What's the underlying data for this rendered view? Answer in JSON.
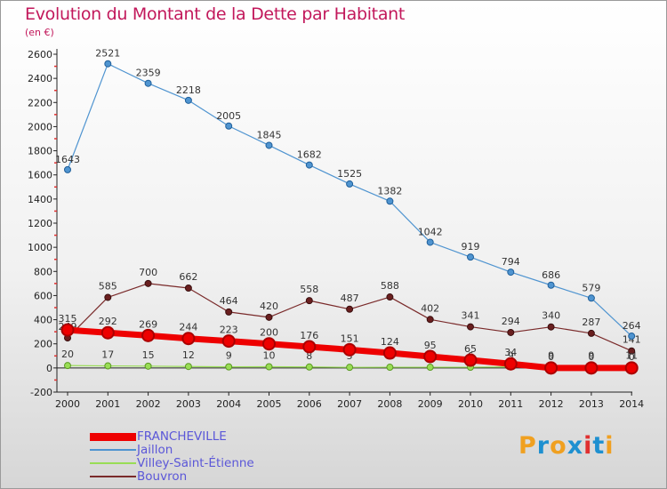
{
  "title": "Evolution du Montant de la Dette par Habitant",
  "unit": "(en €)",
  "logo": {
    "text": "Proxiti",
    "letter_colors": [
      "#f0a020",
      "#1e90d0",
      "#f0a020",
      "#1e90d0",
      "#e03030",
      "#1e90d0",
      "#f0a020"
    ]
  },
  "chart_data": {
    "type": "line",
    "title": "Evolution du Montant de la Dette par Habitant",
    "ylabel": "(en €)",
    "x": [
      "2000",
      "2001",
      "2002",
      "2003",
      "2004",
      "2005",
      "2006",
      "2007",
      "2008",
      "2009",
      "2010",
      "2011",
      "2012",
      "2013",
      "2014"
    ],
    "ylim": [
      -200,
      2600
    ],
    "yticks": [
      "-200",
      "0",
      "200",
      "400",
      "600",
      "800",
      "1000",
      "1200",
      "1400",
      "1600",
      "1800",
      "2000",
      "2200",
      "2400",
      "2600"
    ],
    "grid": false,
    "legend_position": "bottom-left",
    "series": [
      {
        "name": "FRANCHEVILLE",
        "color": "#ee0000",
        "values": [
          315,
          292,
          269,
          244,
          223,
          200,
          176,
          151,
          124,
          95,
          65,
          34,
          0,
          0,
          0
        ],
        "labels": [
          "315",
          "292",
          "269",
          "244",
          "223",
          "200",
          "176",
          "151",
          "124",
          "95",
          "65",
          "34",
          "0",
          "0",
          "0"
        ]
      },
      {
        "name": "Jaillon",
        "color": "#4f94d0",
        "values": [
          1643,
          2521,
          2359,
          2218,
          2005,
          1845,
          1682,
          1525,
          1382,
          1042,
          919,
          794,
          686,
          579,
          264
        ],
        "labels": [
          "1643",
          "2521",
          "2359",
          "2218",
          "2005",
          "1845",
          "1682",
          "1525",
          "1382",
          "1042",
          "919",
          "794",
          "686",
          "579",
          "264"
        ]
      },
      {
        "name": "Villey-Saint-Étienne",
        "color": "#99dd55",
        "values": [
          20,
          17,
          15,
          12,
          9,
          10,
          8,
          5,
          6,
          6,
          6,
          9,
          9,
          9,
          11
        ],
        "labels": [
          "20",
          "17",
          "15",
          "12",
          "9",
          "10",
          "8",
          "5",
          "6",
          "6",
          "6",
          "9",
          "9",
          "9",
          "11"
        ]
      },
      {
        "name": "Bouvron",
        "color": "#7a2a2a",
        "values": [
          249,
          585,
          700,
          662,
          464,
          420,
          558,
          487,
          588,
          402,
          341,
          294,
          340,
          287,
          141
        ],
        "labels": [
          "249",
          "585",
          "700",
          "662",
          "464",
          "420",
          "558",
          "487",
          "588",
          "402",
          "341",
          "294",
          "340",
          "287",
          "141"
        ]
      }
    ]
  }
}
